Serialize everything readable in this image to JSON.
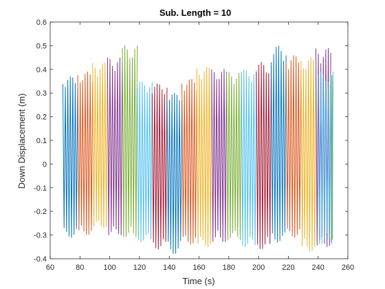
{
  "chart_data": {
    "type": "line",
    "title": "Sub. Length = 10",
    "xlabel": "Time (s)",
    "ylabel": "Down Displacement (m)",
    "xlim": [
      60,
      260
    ],
    "ylim": [
      -0.4,
      0.6
    ],
    "xticks": [
      60,
      80,
      100,
      120,
      140,
      160,
      180,
      200,
      220,
      240,
      260
    ],
    "yticks": [
      -0.4,
      -0.3,
      -0.2,
      -0.1,
      0,
      0.1,
      0.2,
      0.3,
      0.4,
      0.5,
      0.6
    ],
    "grid": false,
    "legend": "none",
    "oscillation_cycles_per_segment": 6,
    "series": [
      {
        "color": "#0072BD",
        "x_range": [
          68.5,
          78.5
        ],
        "amplitude_max": 0.37,
        "amplitude_min": -0.31
      },
      {
        "color": "#D95319",
        "x_range": [
          78.5,
          88.5
        ],
        "amplitude_max": 0.39,
        "amplitude_min": -0.3
      },
      {
        "color": "#EDB120",
        "x_range": [
          88.5,
          98.5
        ],
        "amplitude_max": 0.43,
        "amplitude_min": -0.27
      },
      {
        "color": "#7E2F8E",
        "x_range": [
          98.5,
          108.5
        ],
        "amplitude_max": 0.45,
        "amplitude_min": -0.3
      },
      {
        "color": "#77AC30",
        "x_range": [
          108.5,
          118.5
        ],
        "amplitude_max": 0.5,
        "amplitude_min": -0.31
      },
      {
        "color": "#4DBEEE",
        "x_range": [
          118.5,
          128.5
        ],
        "amplitude_max": 0.35,
        "amplitude_min": -0.33
      },
      {
        "color": "#A2142F",
        "x_range": [
          128.5,
          138.5
        ],
        "amplitude_max": 0.34,
        "amplitude_min": -0.36
      },
      {
        "color": "#0072BD",
        "x_range": [
          138.5,
          148.5
        ],
        "amplitude_max": 0.3,
        "amplitude_min": -0.38
      },
      {
        "color": "#D95319",
        "x_range": [
          148.5,
          158.5
        ],
        "amplitude_max": 0.36,
        "amplitude_min": -0.34
      },
      {
        "color": "#EDB120",
        "x_range": [
          158.5,
          168.5
        ],
        "amplitude_max": 0.41,
        "amplitude_min": -0.35
      },
      {
        "color": "#7E2F8E",
        "x_range": [
          168.5,
          178.5
        ],
        "amplitude_max": 0.4,
        "amplitude_min": -0.33
      },
      {
        "color": "#77AC30",
        "x_range": [
          178.5,
          188.5
        ],
        "amplitude_max": 0.39,
        "amplitude_min": -0.32
      },
      {
        "color": "#4DBEEE",
        "x_range": [
          188.5,
          198.5
        ],
        "amplitude_max": 0.4,
        "amplitude_min": -0.35
      },
      {
        "color": "#A2142F",
        "x_range": [
          198.5,
          208.5
        ],
        "amplitude_max": 0.43,
        "amplitude_min": -0.36
      },
      {
        "color": "#0072BD",
        "x_range": [
          208.5,
          218.5
        ],
        "amplitude_max": 0.5,
        "amplitude_min": -0.33
      },
      {
        "color": "#D95319",
        "x_range": [
          218.5,
          228.5
        ],
        "amplitude_max": 0.46,
        "amplitude_min": -0.31
      },
      {
        "color": "#EDB120",
        "x_range": [
          228.5,
          238.5
        ],
        "amplitude_max": 0.45,
        "amplitude_min": -0.37
      },
      {
        "color": "#7E2F8E",
        "x_range": [
          238.5,
          248.5
        ],
        "amplitude_max": 0.49,
        "amplitude_min": -0.35
      },
      {
        "color": "#77AC30",
        "x_range": [
          248.5,
          250.0
        ],
        "amplitude_max": 0.38,
        "amplitude_min": -0.33
      },
      {
        "color": "#4DBEEE",
        "x_range": [
          240.0,
          250.0
        ],
        "amplitude_max": 0.39,
        "amplitude_min": -0.34
      }
    ]
  }
}
